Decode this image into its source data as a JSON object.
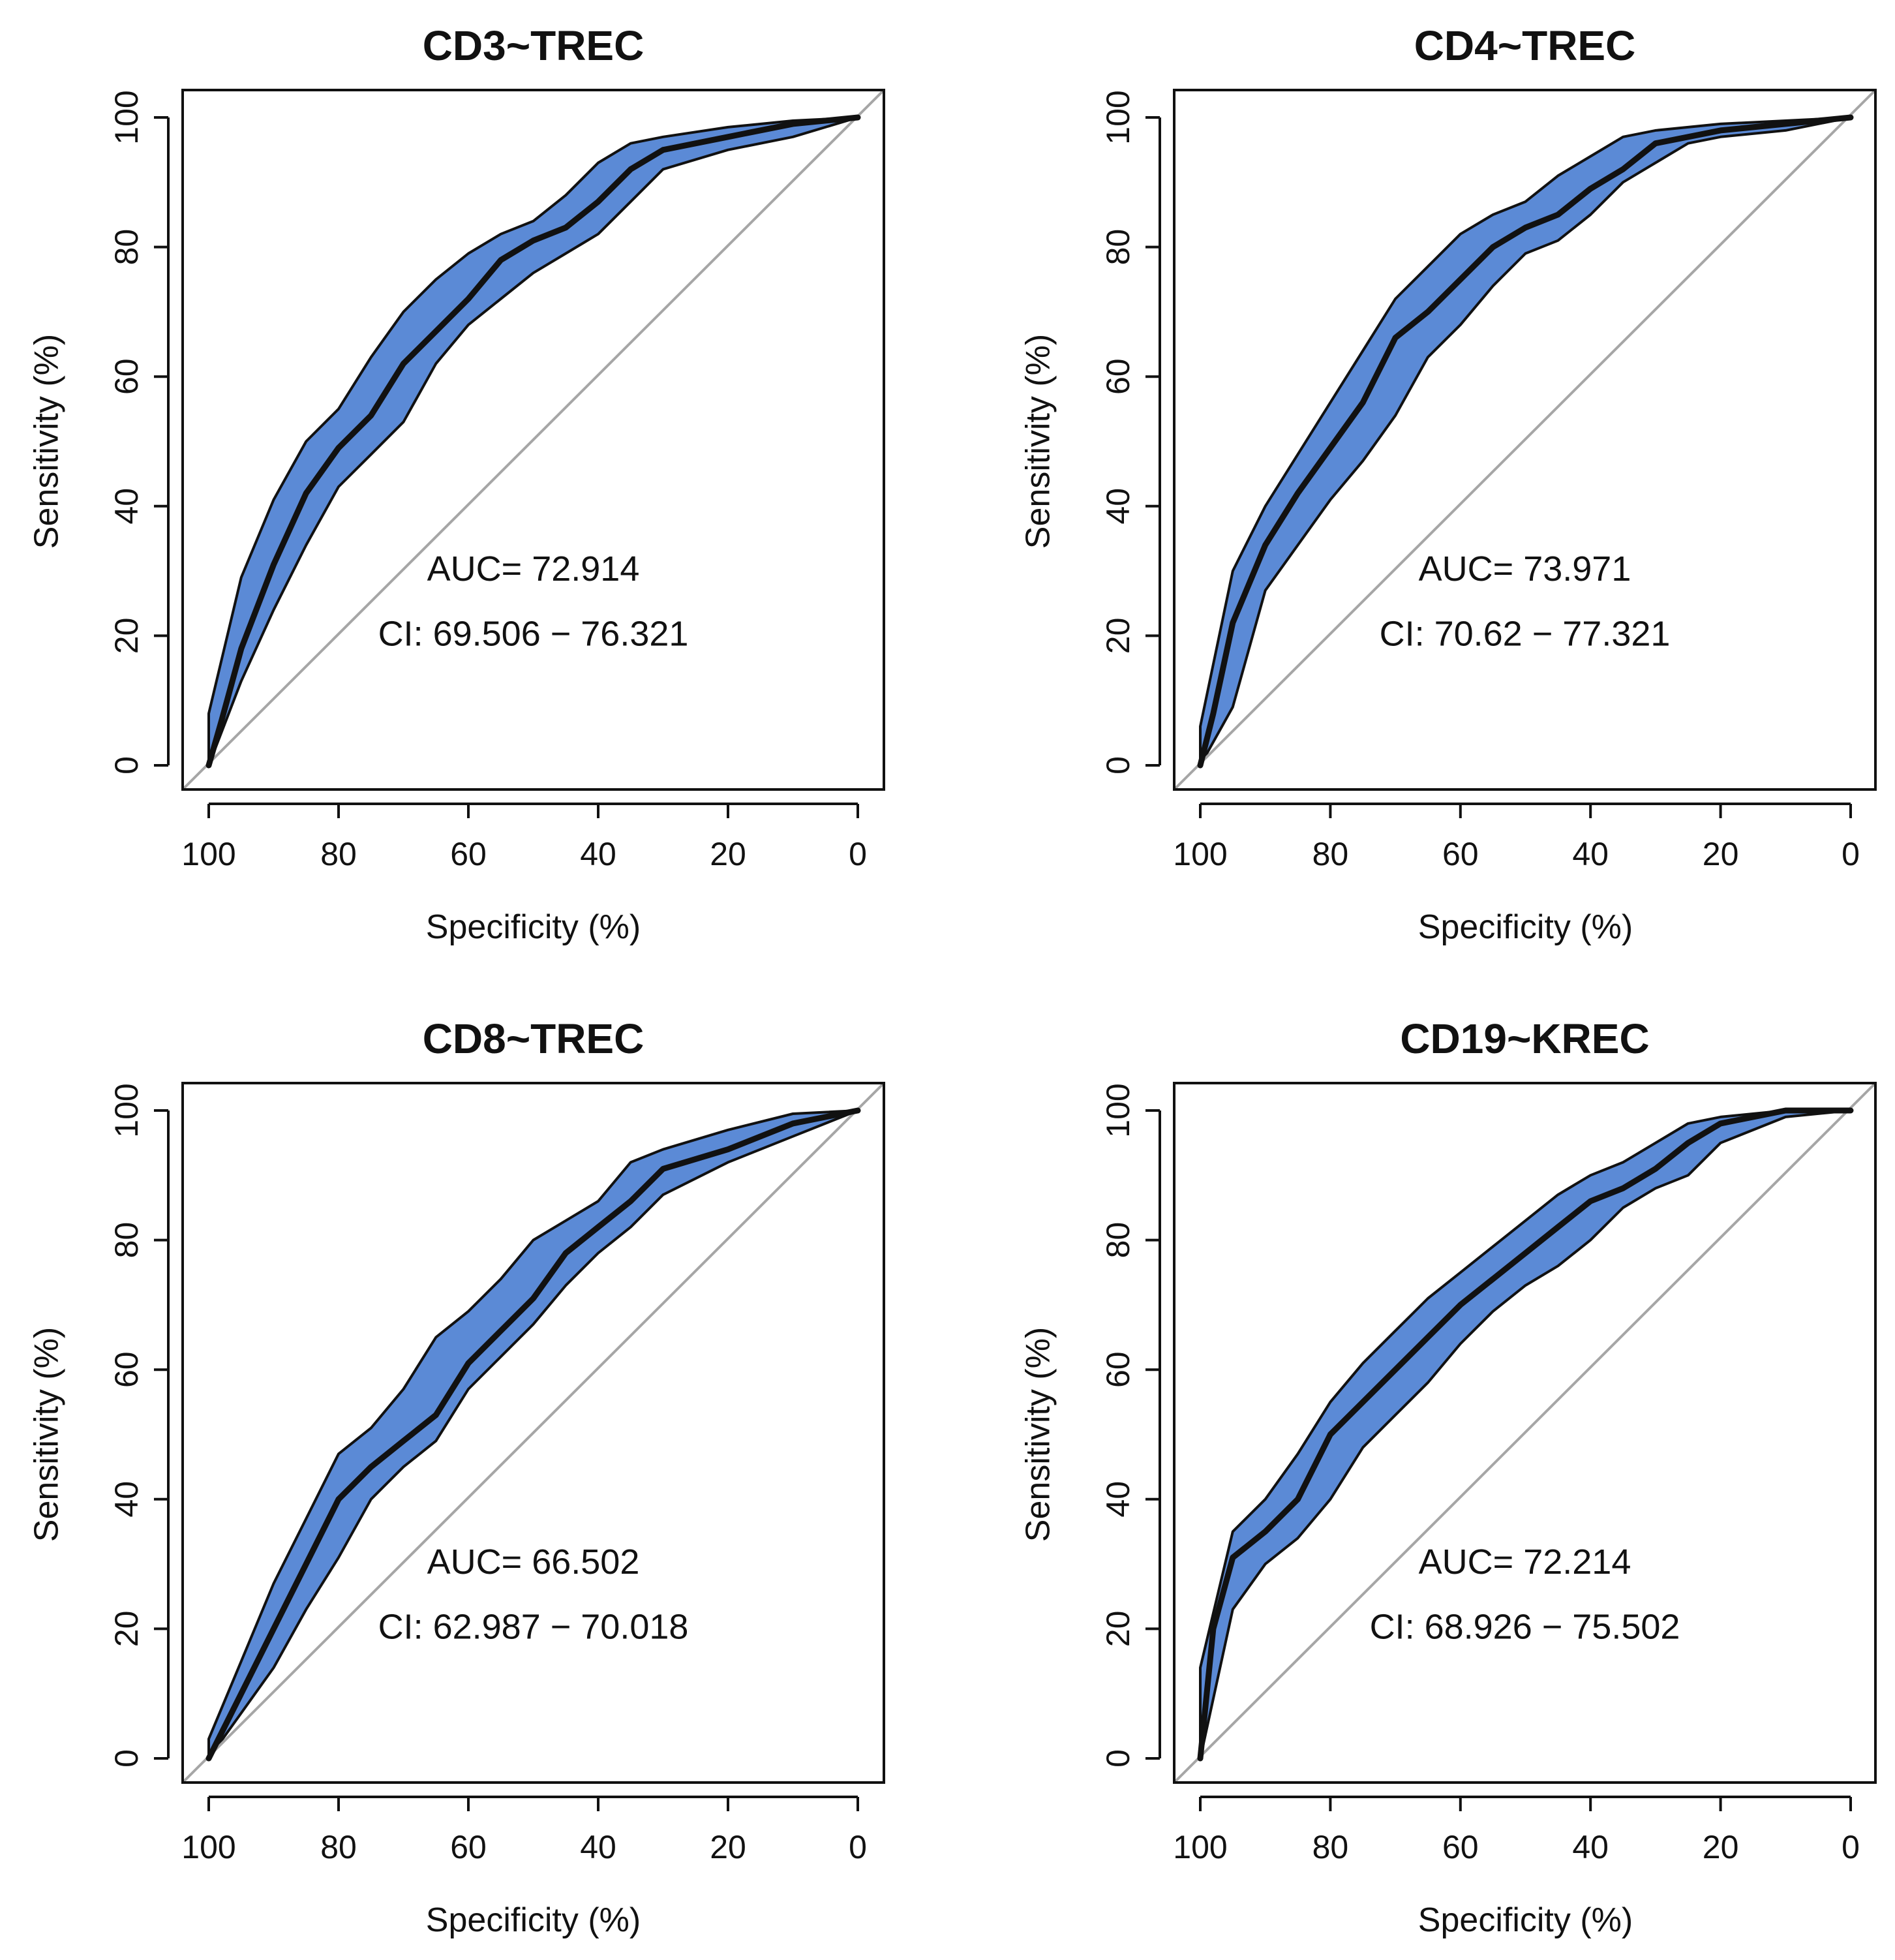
{
  "colors": {
    "band_fill": "#5b8ad6",
    "band_edge": "#111111",
    "curve": "#111111",
    "diagonal": "#a6a6a6",
    "frame": "#111111"
  },
  "chart_data": [
    {
      "type": "line",
      "title": "CD3~TREC",
      "xlabel": "Specificity (%)",
      "ylabel": "Sensitivity (%)",
      "xlim": [
        100,
        0
      ],
      "ylim": [
        0,
        100
      ],
      "xticks": [
        "100",
        "80",
        "60",
        "40",
        "20",
        "0"
      ],
      "yticks": [
        "0",
        "20",
        "40",
        "60",
        "80",
        "100"
      ],
      "auc_text": "AUC= 72.914",
      "ci_text": "CI: 69.506 − 76.321",
      "series": [
        {
          "name": "upper",
          "x": [
            100,
            100,
            95,
            90,
            85,
            80,
            75,
            70,
            65,
            60,
            55,
            50,
            45,
            40,
            35,
            30,
            20,
            10,
            0
          ],
          "y": [
            0,
            8,
            29,
            41,
            50,
            55,
            63,
            70,
            75,
            79,
            82,
            84,
            88,
            93,
            96,
            97,
            98.5,
            99.5,
            100
          ]
        },
        {
          "name": "roc",
          "x": [
            100,
            98,
            95,
            90,
            85,
            80,
            75,
            70,
            65,
            60,
            55,
            50,
            45,
            40,
            35,
            30,
            20,
            10,
            0
          ],
          "y": [
            0,
            7,
            18,
            31,
            42,
            49,
            54,
            62,
            67,
            72,
            78,
            81,
            83,
            87,
            92,
            95,
            97,
            99,
            100
          ]
        },
        {
          "name": "lower",
          "x": [
            100,
            95,
            90,
            85,
            80,
            75,
            70,
            65,
            60,
            55,
            50,
            45,
            40,
            35,
            30,
            20,
            10,
            0
          ],
          "y": [
            0,
            13,
            24,
            34,
            43,
            48,
            53,
            62,
            68,
            72,
            76,
            79,
            82,
            87,
            92,
            95,
            97,
            100
          ]
        }
      ]
    },
    {
      "type": "line",
      "title": "CD4~TREC",
      "xlabel": "Specificity (%)",
      "ylabel": "Sensitivity (%)",
      "xlim": [
        100,
        0
      ],
      "ylim": [
        0,
        100
      ],
      "xticks": [
        "100",
        "80",
        "60",
        "40",
        "20",
        "0"
      ],
      "yticks": [
        "0",
        "20",
        "40",
        "60",
        "80",
        "100"
      ],
      "auc_text": "AUC= 73.971",
      "ci_text": "CI: 70.62 − 77.321",
      "series": [
        {
          "name": "upper",
          "x": [
            100,
            100,
            95,
            90,
            85,
            80,
            75,
            70,
            65,
            60,
            55,
            50,
            45,
            40,
            35,
            30,
            20,
            10,
            0
          ],
          "y": [
            0,
            6,
            30,
            40,
            48,
            56,
            64,
            72,
            77,
            82,
            85,
            87,
            91,
            94,
            97,
            98,
            99,
            99.5,
            100
          ]
        },
        {
          "name": "roc",
          "x": [
            100,
            98,
            95,
            90,
            85,
            80,
            75,
            70,
            65,
            60,
            55,
            50,
            45,
            40,
            35,
            30,
            20,
            10,
            0
          ],
          "y": [
            0,
            8,
            22,
            34,
            42,
            49,
            56,
            66,
            70,
            75,
            80,
            83,
            85,
            89,
            92,
            96,
            98,
            99,
            100
          ]
        },
        {
          "name": "lower",
          "x": [
            100,
            95,
            90,
            85,
            80,
            75,
            70,
            65,
            60,
            55,
            50,
            45,
            40,
            35,
            30,
            25,
            20,
            10,
            0
          ],
          "y": [
            0,
            9,
            27,
            34,
            41,
            47,
            54,
            63,
            68,
            74,
            79,
            81,
            85,
            90,
            93,
            96,
            97,
            98,
            100
          ]
        }
      ]
    },
    {
      "type": "line",
      "title": "CD8~TREC",
      "xlabel": "Specificity (%)",
      "ylabel": "Sensitivity (%)",
      "xlim": [
        100,
        0
      ],
      "ylim": [
        0,
        100
      ],
      "xticks": [
        "100",
        "80",
        "60",
        "40",
        "20",
        "0"
      ],
      "yticks": [
        "0",
        "20",
        "40",
        "60",
        "80",
        "100"
      ],
      "auc_text": "AUC= 66.502",
      "ci_text": "CI: 62.987 − 70.018",
      "series": [
        {
          "name": "upper",
          "x": [
            100,
            100,
            95,
            90,
            85,
            80,
            75,
            70,
            65,
            60,
            55,
            50,
            45,
            40,
            35,
            30,
            20,
            10,
            0
          ],
          "y": [
            0,
            3,
            15,
            27,
            37,
            47,
            51,
            57,
            65,
            69,
            74,
            80,
            83,
            86,
            92,
            94,
            97,
            99.5,
            100
          ]
        },
        {
          "name": "roc",
          "x": [
            100,
            98,
            95,
            90,
            85,
            80,
            75,
            70,
            65,
            60,
            55,
            50,
            45,
            40,
            35,
            30,
            20,
            10,
            0
          ],
          "y": [
            0,
            4,
            10,
            20,
            30,
            40,
            45,
            49,
            53,
            61,
            66,
            71,
            78,
            82,
            86,
            91,
            94,
            98,
            100
          ]
        },
        {
          "name": "lower",
          "x": [
            100,
            95,
            90,
            85,
            80,
            75,
            70,
            65,
            60,
            55,
            50,
            45,
            40,
            35,
            30,
            20,
            10,
            0
          ],
          "y": [
            0,
            7,
            14,
            23,
            31,
            40,
            45,
            49,
            57,
            62,
            67,
            73,
            78,
            82,
            87,
            92,
            96,
            100
          ]
        }
      ]
    },
    {
      "type": "line",
      "title": "CD19~KREC",
      "xlabel": "Specificity (%)",
      "ylabel": "Sensitivity (%)",
      "xlim": [
        100,
        0
      ],
      "ylim": [
        0,
        100
      ],
      "xticks": [
        "100",
        "80",
        "60",
        "40",
        "20",
        "0"
      ],
      "yticks": [
        "0",
        "20",
        "40",
        "60",
        "80",
        "100"
      ],
      "auc_text": "AUC= 72.214",
      "ci_text": "CI: 68.926 − 75.502",
      "series": [
        {
          "name": "upper",
          "x": [
            100,
            100,
            95,
            90,
            85,
            80,
            75,
            70,
            65,
            60,
            55,
            50,
            45,
            40,
            35,
            30,
            25,
            20,
            10,
            0
          ],
          "y": [
            0,
            14,
            35,
            40,
            47,
            55,
            61,
            66,
            71,
            75,
            79,
            83,
            87,
            90,
            92,
            95,
            98,
            99,
            100,
            100
          ]
        },
        {
          "name": "roc",
          "x": [
            100,
            98,
            95,
            90,
            85,
            80,
            75,
            70,
            65,
            60,
            55,
            50,
            45,
            40,
            35,
            30,
            25,
            20,
            10,
            0
          ],
          "y": [
            0,
            20,
            31,
            35,
            40,
            50,
            55,
            60,
            65,
            70,
            74,
            78,
            82,
            86,
            88,
            91,
            95,
            98,
            100,
            100
          ]
        },
        {
          "name": "lower",
          "x": [
            100,
            95,
            90,
            85,
            80,
            75,
            70,
            65,
            60,
            55,
            50,
            45,
            40,
            35,
            30,
            25,
            20,
            10,
            0
          ],
          "y": [
            0,
            23,
            30,
            34,
            40,
            48,
            53,
            58,
            64,
            69,
            73,
            76,
            80,
            85,
            88,
            90,
            95,
            99,
            100
          ]
        }
      ]
    }
  ]
}
